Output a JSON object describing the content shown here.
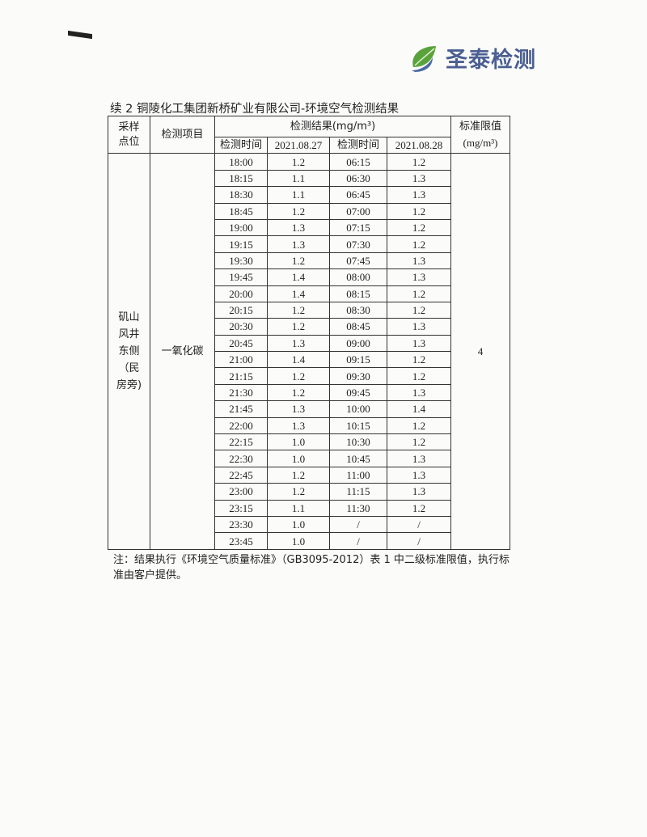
{
  "logo": {
    "text": "圣泰检测",
    "colors": {
      "leaf": "#5aa33c",
      "text": "#4b5f92"
    }
  },
  "caption": "续 2 铜陵化工集团新桥矿业有限公司-环境空气检测结果",
  "table": {
    "headers": {
      "site": "采样点位",
      "item": "检测项目",
      "result": "检测结果(mg/m³)",
      "limit": "标准限值",
      "limit_unit": "(mg/m³)",
      "time1": "检测时间",
      "date1": "2021.08.27",
      "time2": "检测时间",
      "date2": "2021.08.28"
    },
    "site": "矶山风井东侧（民房旁)",
    "item": "一氧化碳",
    "limit": "4",
    "rows": [
      [
        "18:00",
        "1.2",
        "06:15",
        "1.2"
      ],
      [
        "18:15",
        "1.1",
        "06:30",
        "1.3"
      ],
      [
        "18:30",
        "1.1",
        "06:45",
        "1.3"
      ],
      [
        "18:45",
        "1.2",
        "07:00",
        "1.2"
      ],
      [
        "19:00",
        "1.3",
        "07:15",
        "1.2"
      ],
      [
        "19:15",
        "1.3",
        "07:30",
        "1.2"
      ],
      [
        "19:30",
        "1.2",
        "07:45",
        "1.3"
      ],
      [
        "19:45",
        "1.4",
        "08:00",
        "1.3"
      ],
      [
        "20:00",
        "1.4",
        "08:15",
        "1.2"
      ],
      [
        "20:15",
        "1.2",
        "08:30",
        "1.2"
      ],
      [
        "20:30",
        "1.2",
        "08:45",
        "1.3"
      ],
      [
        "20:45",
        "1.3",
        "09:00",
        "1.3"
      ],
      [
        "21:00",
        "1.4",
        "09:15",
        "1.2"
      ],
      [
        "21:15",
        "1.2",
        "09:30",
        "1.2"
      ],
      [
        "21:30",
        "1.2",
        "09:45",
        "1.3"
      ],
      [
        "21:45",
        "1.3",
        "10:00",
        "1.4"
      ],
      [
        "22:00",
        "1.3",
        "10:15",
        "1.2"
      ],
      [
        "22:15",
        "1.0",
        "10:30",
        "1.2"
      ],
      [
        "22:30",
        "1.0",
        "10:45",
        "1.3"
      ],
      [
        "22:45",
        "1.2",
        "11:00",
        "1.3"
      ],
      [
        "23:00",
        "1.2",
        "11:15",
        "1.3"
      ],
      [
        "23:15",
        "1.1",
        "11:30",
        "1.2"
      ],
      [
        "23:30",
        "1.0",
        "/",
        "/"
      ],
      [
        "23:45",
        "1.0",
        "/",
        "/"
      ]
    ]
  },
  "note": "注：结果执行《环境空气质量标准》（GB3095-2012）表 1 中二级标准限值，执行标准由客户提供。"
}
